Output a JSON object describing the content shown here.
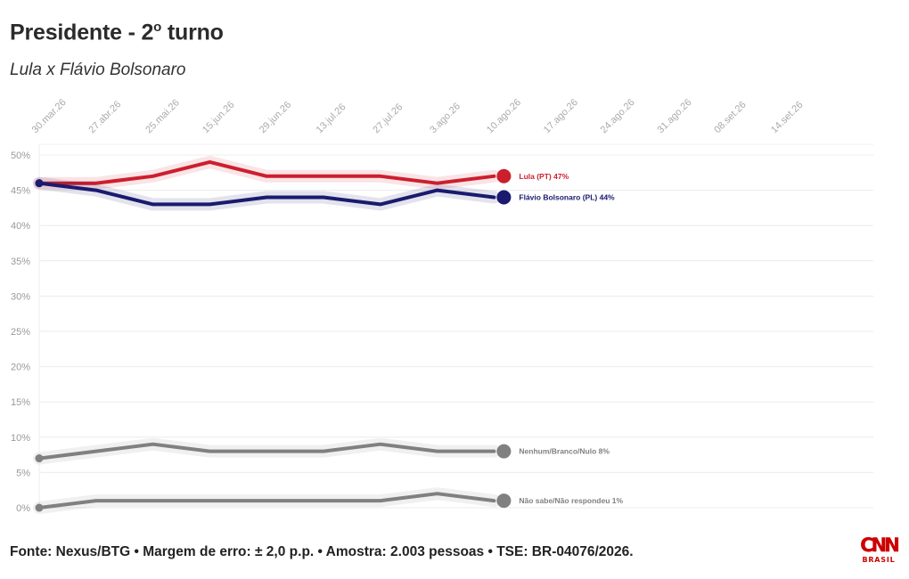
{
  "header": {
    "title": "Presidente - 2",
    "title_sup": "o",
    "title_rest": " turno",
    "subtitle": "Lula x Flávio Bolsonaro"
  },
  "footer": {
    "source": "Fonte: Nexus/BTG • Margem de erro: ± 2,0 p.p. • Amostra: 2.003 pessoas • TSE: BR-04076/2026."
  },
  "logo": {
    "mark": "CNN",
    "sub": "BRASIL"
  },
  "chart_data": {
    "type": "line",
    "x_ticks": [
      "30.mar.26",
      "27.abr.26",
      "25.mai.26",
      "15.jun.26",
      "29.jun.26",
      "13.jul.26",
      "27.jul.26",
      "3.ago.26",
      "10.ago.26",
      "17.ago.26",
      "24.ago.26",
      "31.ago.26",
      "08.set.26",
      "14.set.26"
    ],
    "y_ticks": [
      "0%",
      "5%",
      "10%",
      "15%",
      "20%",
      "25%",
      "30%",
      "35%",
      "40%",
      "45%",
      "50%"
    ],
    "ylim": [
      0,
      50
    ],
    "grid": true,
    "series": [
      {
        "name": "Lula (PT)",
        "label": "Lula (PT) 47%",
        "color": "#cc1f2e",
        "points": [
          [
            0,
            46
          ],
          [
            1,
            46
          ],
          [
            2,
            47
          ],
          [
            3,
            49
          ],
          [
            4,
            47
          ],
          [
            5,
            47
          ],
          [
            6,
            47
          ],
          [
            7,
            46
          ],
          [
            8,
            47
          ]
        ]
      },
      {
        "name": "Flávio Bolsonaro (PL)",
        "label": "Flávio Bolsonaro (PL) 44%",
        "color": "#1a1a6e",
        "points": [
          [
            0,
            46
          ],
          [
            1,
            45
          ],
          [
            2,
            43
          ],
          [
            3,
            43
          ],
          [
            4,
            44
          ],
          [
            5,
            44
          ],
          [
            6,
            43
          ],
          [
            7,
            45
          ],
          [
            8,
            44
          ]
        ]
      },
      {
        "name": "Nenhum/Branco/Nulo",
        "label": "Nenhum/Branco/Nulo 8%",
        "color": "#808080",
        "points": [
          [
            0,
            7
          ],
          [
            1,
            8
          ],
          [
            2,
            9
          ],
          [
            3,
            8
          ],
          [
            4,
            8
          ],
          [
            5,
            8
          ],
          [
            6,
            9
          ],
          [
            7,
            8
          ],
          [
            8,
            8
          ]
        ]
      },
      {
        "name": "Não sabe/Não respondeu",
        "label": "Não sabe/Não respondeu 1%",
        "color": "#808080",
        "points": [
          [
            0,
            0
          ],
          [
            1,
            1
          ],
          [
            2,
            1
          ],
          [
            3,
            1
          ],
          [
            4,
            1
          ],
          [
            5,
            1
          ],
          [
            6,
            1
          ],
          [
            7,
            2
          ],
          [
            8,
            1
          ]
        ]
      }
    ]
  }
}
